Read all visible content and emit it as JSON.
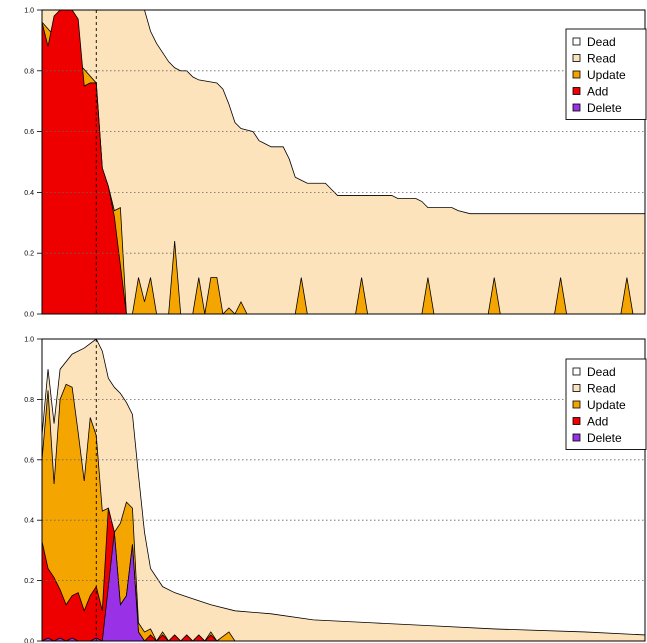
{
  "chart_data": [
    {
      "type": "area",
      "stacked": true,
      "legend_position": "top-right",
      "grid": "horizontal-dotted",
      "ylim": [
        0,
        1
      ],
      "xlim": [
        0,
        100
      ],
      "y_ticks": [
        "0.0",
        "0.2",
        "0.4",
        "0.6",
        "0.8",
        "1.0"
      ],
      "x_ticks": [],
      "marker_x": 9,
      "legend": [
        {
          "key": "dead",
          "label": "Dead",
          "color": "#ffffff"
        },
        {
          "key": "read",
          "label": "Read",
          "color": "#fde3bc"
        },
        {
          "key": "update",
          "label": "Update",
          "color": "#f5a500"
        },
        {
          "key": "add",
          "label": "Add",
          "color": "#ee0000"
        },
        {
          "key": "delete",
          "label": "Delete",
          "color": "#9932e6"
        }
      ],
      "series": [
        {
          "key": "add",
          "points": [
            [
              0,
              0.96
            ],
            [
              1,
              0.88
            ],
            [
              2,
              0.98
            ],
            [
              3,
              1.0
            ],
            [
              5,
              1.0
            ],
            [
              6,
              0.97
            ],
            [
              7,
              0.75
            ],
            [
              8,
              0.76
            ],
            [
              9,
              0.76
            ],
            [
              10,
              0.48
            ],
            [
              11,
              0.42
            ],
            [
              12,
              0.32
            ],
            [
              13,
              0.16
            ],
            [
              14,
              0.0
            ],
            [
              100,
              0.0
            ]
          ]
        },
        {
          "key": "update",
          "points": [
            [
              0,
              0.96
            ],
            [
              9,
              0.76
            ],
            [
              10,
              0.48
            ],
            [
              11,
              0.42
            ],
            [
              12,
              0.34
            ],
            [
              13,
              0.35
            ],
            [
              14,
              0.0
            ],
            [
              15,
              0.0
            ],
            [
              16,
              0.12
            ],
            [
              17,
              0.04
            ],
            [
              18,
              0.12
            ],
            [
              19,
              0.0
            ],
            [
              21,
              0.0
            ],
            [
              22,
              0.24
            ],
            [
              23,
              0.0
            ],
            [
              25,
              0.0
            ],
            [
              26,
              0.12
            ],
            [
              27,
              0.0
            ],
            [
              28,
              0.12
            ],
            [
              29,
              0.12
            ],
            [
              30,
              0.0
            ],
            [
              31,
              0.02
            ],
            [
              32,
              0.0
            ],
            [
              33,
              0.04
            ],
            [
              34,
              0.0
            ],
            [
              42,
              0.0
            ],
            [
              43,
              0.12
            ],
            [
              44,
              0.0
            ],
            [
              52,
              0.0
            ],
            [
              53,
              0.12
            ],
            [
              54,
              0.0
            ],
            [
              63,
              0.0
            ],
            [
              64,
              0.12
            ],
            [
              65,
              0.0
            ],
            [
              74,
              0.0
            ],
            [
              75,
              0.12
            ],
            [
              76,
              0.0
            ],
            [
              85,
              0.0
            ],
            [
              86,
              0.12
            ],
            [
              87,
              0.0
            ],
            [
              96,
              0.0
            ],
            [
              97,
              0.12
            ],
            [
              98,
              0.0
            ],
            [
              100,
              0.0
            ]
          ]
        },
        {
          "key": "read",
          "points": [
            [
              0,
              1.0
            ],
            [
              17,
              1.0
            ],
            [
              18,
              0.93
            ],
            [
              19,
              0.89
            ],
            [
              20,
              0.86
            ],
            [
              21,
              0.83
            ],
            [
              22,
              0.81
            ],
            [
              23,
              0.8
            ],
            [
              24,
              0.8
            ],
            [
              25,
              0.78
            ],
            [
              26,
              0.77
            ],
            [
              29,
              0.76
            ],
            [
              30,
              0.74
            ],
            [
              31,
              0.69
            ],
            [
              32,
              0.63
            ],
            [
              33,
              0.61
            ],
            [
              35,
              0.6
            ],
            [
              36,
              0.57
            ],
            [
              37,
              0.56
            ],
            [
              38,
              0.55
            ],
            [
              40,
              0.55
            ],
            [
              41,
              0.51
            ],
            [
              42,
              0.45
            ],
            [
              43,
              0.44
            ],
            [
              44,
              0.43
            ],
            [
              47,
              0.43
            ],
            [
              48,
              0.41
            ],
            [
              49,
              0.39
            ],
            [
              58,
              0.39
            ],
            [
              59,
              0.38
            ],
            [
              62,
              0.38
            ],
            [
              63,
              0.37
            ],
            [
              64,
              0.35
            ],
            [
              68,
              0.35
            ],
            [
              69,
              0.34
            ],
            [
              71,
              0.33
            ],
            [
              100,
              0.33
            ]
          ]
        }
      ]
    },
    {
      "type": "area",
      "stacked": true,
      "legend_position": "top-right",
      "grid": "horizontal-dotted",
      "ylim": [
        0,
        1
      ],
      "xlim": [
        0,
        100
      ],
      "y_ticks": [
        "0.0",
        "0.2",
        "0.4",
        "0.6",
        "0.8",
        "1.0"
      ],
      "x_ticks": [],
      "marker_x": 9,
      "legend": [
        {
          "key": "dead",
          "label": "Dead",
          "color": "#ffffff"
        },
        {
          "key": "read",
          "label": "Read",
          "color": "#fde3bc"
        },
        {
          "key": "update",
          "label": "Update",
          "color": "#f5a500"
        },
        {
          "key": "add",
          "label": "Add",
          "color": "#ee0000"
        },
        {
          "key": "delete",
          "label": "Delete",
          "color": "#9932e6"
        }
      ],
      "series": [
        {
          "key": "delete",
          "points": [
            [
              0,
              0.0
            ],
            [
              1,
              0.01
            ],
            [
              2,
              0.0
            ],
            [
              3,
              0.01
            ],
            [
              4,
              0.0
            ],
            [
              5,
              0.01
            ],
            [
              6,
              0.0
            ],
            [
              8,
              0.0
            ],
            [
              9,
              0.01
            ],
            [
              10,
              0.0
            ],
            [
              11,
              0.18
            ],
            [
              12,
              0.36
            ],
            [
              13,
              0.12
            ],
            [
              14,
              0.15
            ],
            [
              15,
              0.32
            ],
            [
              16,
              0.03
            ],
            [
              17,
              0.0
            ],
            [
              100,
              0.0
            ]
          ]
        },
        {
          "key": "add",
          "points": [
            [
              0,
              0.33
            ],
            [
              1,
              0.24
            ],
            [
              2,
              0.21
            ],
            [
              3,
              0.17
            ],
            [
              4,
              0.12
            ],
            [
              5,
              0.15
            ],
            [
              6,
              0.16
            ],
            [
              7,
              0.1
            ],
            [
              8,
              0.15
            ],
            [
              9,
              0.18
            ],
            [
              10,
              0.1
            ],
            [
              11,
              0.44
            ],
            [
              12,
              0.36
            ],
            [
              13,
              0.12
            ],
            [
              14,
              0.15
            ],
            [
              15,
              0.32
            ],
            [
              16,
              0.03
            ],
            [
              17,
              0.0
            ],
            [
              18,
              0.02
            ],
            [
              19,
              0.0
            ],
            [
              20,
              0.02
            ],
            [
              21,
              0.0
            ],
            [
              22,
              0.02
            ],
            [
              23,
              0.0
            ],
            [
              24,
              0.02
            ],
            [
              25,
              0.0
            ],
            [
              26,
              0.02
            ],
            [
              27,
              0.0
            ],
            [
              28,
              0.02
            ],
            [
              29,
              0.0
            ],
            [
              100,
              0.0
            ]
          ]
        },
        {
          "key": "update",
          "points": [
            [
              0,
              0.6
            ],
            [
              1,
              0.83
            ],
            [
              2,
              0.52
            ],
            [
              3,
              0.8
            ],
            [
              4,
              0.85
            ],
            [
              5,
              0.84
            ],
            [
              6,
              0.69
            ],
            [
              7,
              0.53
            ],
            [
              8,
              0.74
            ],
            [
              9,
              0.68
            ],
            [
              10,
              0.43
            ],
            [
              11,
              0.44
            ],
            [
              12,
              0.36
            ],
            [
              13,
              0.39
            ],
            [
              14,
              0.46
            ],
            [
              15,
              0.44
            ],
            [
              16,
              0.06
            ],
            [
              17,
              0.03
            ],
            [
              18,
              0.04
            ],
            [
              19,
              0.0
            ],
            [
              20,
              0.03
            ],
            [
              21,
              0.0
            ],
            [
              22,
              0.02
            ],
            [
              23,
              0.0
            ],
            [
              24,
              0.02
            ],
            [
              25,
              0.0
            ],
            [
              26,
              0.02
            ],
            [
              27,
              0.0
            ],
            [
              28,
              0.03
            ],
            [
              29,
              0.0
            ],
            [
              31,
              0.03
            ],
            [
              32,
              0.0
            ],
            [
              100,
              0.0
            ]
          ]
        },
        {
          "key": "read",
          "points": [
            [
              0,
              0.68
            ],
            [
              1,
              0.9
            ],
            [
              2,
              0.72
            ],
            [
              3,
              0.9
            ],
            [
              5,
              0.95
            ],
            [
              7,
              0.97
            ],
            [
              9,
              1.0
            ],
            [
              10,
              0.96
            ],
            [
              11,
              0.87
            ],
            [
              12,
              0.84
            ],
            [
              13,
              0.82
            ],
            [
              14,
              0.79
            ],
            [
              15,
              0.75
            ],
            [
              16,
              0.55
            ],
            [
              17,
              0.36
            ],
            [
              18,
              0.24
            ],
            [
              20,
              0.18
            ],
            [
              22,
              0.16
            ],
            [
              25,
              0.14
            ],
            [
              28,
              0.12
            ],
            [
              32,
              0.1
            ],
            [
              38,
              0.09
            ],
            [
              45,
              0.07
            ],
            [
              55,
              0.06
            ],
            [
              65,
              0.05
            ],
            [
              75,
              0.04
            ],
            [
              90,
              0.03
            ],
            [
              100,
              0.02
            ]
          ]
        }
      ]
    }
  ]
}
